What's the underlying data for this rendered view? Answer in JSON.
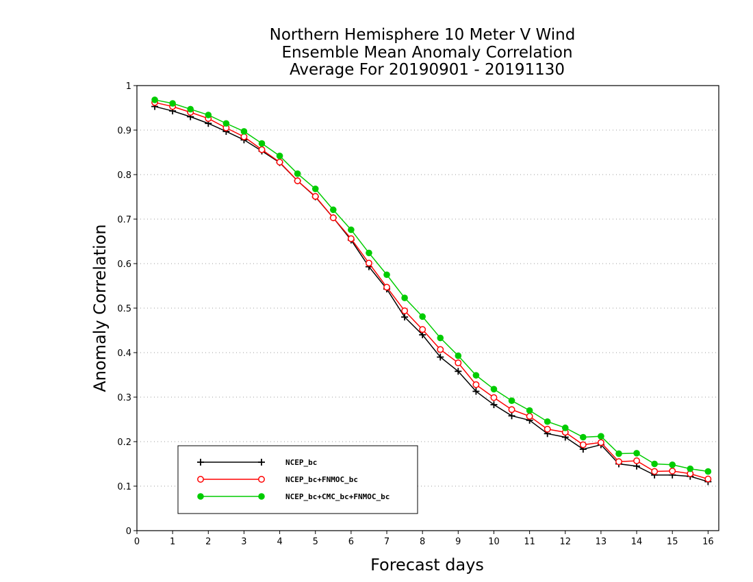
{
  "chart_data": {
    "type": "line",
    "title_lines": [
      "Northern Hemisphere 10 Meter V Wind",
      "Ensemble Mean Anomaly Correlation",
      "Average For 20190901 - 20191130"
    ],
    "xlabel": "Forecast days",
    "ylabel": "Anomaly Correlation",
    "xlim": [
      0,
      16.3
    ],
    "ylim": [
      0,
      1
    ],
    "xticks": [
      "0",
      "1",
      "2",
      "3",
      "4",
      "5",
      "6",
      "7",
      "8",
      "9",
      "10",
      "11",
      "12",
      "13",
      "14",
      "15",
      "16"
    ],
    "yticks": [
      "0",
      "0.1",
      "0.2",
      "0.3",
      "0.4",
      "0.5",
      "0.6",
      "0.7",
      "0.8",
      "0.9",
      "1"
    ],
    "grid": "horizontal dotted",
    "legend_position": "bottom-left",
    "x": [
      0.5,
      1,
      1.5,
      2,
      2.5,
      3,
      3.5,
      4,
      4.5,
      5,
      5.5,
      6,
      6.5,
      7,
      7.5,
      8,
      8.5,
      9,
      9.5,
      10,
      10.5,
      11,
      11.5,
      12,
      12.5,
      13,
      13.5,
      14,
      14.5,
      15,
      15.5,
      16
    ],
    "series": [
      {
        "name": "NCEP_bc",
        "color": "#000000",
        "marker": "plus",
        "values": [
          0.953,
          0.943,
          0.93,
          0.915,
          0.897,
          0.878,
          0.853,
          0.827,
          0.786,
          0.75,
          0.703,
          0.653,
          0.593,
          0.543,
          0.48,
          0.44,
          0.39,
          0.358,
          0.313,
          0.283,
          0.258,
          0.248,
          0.218,
          0.21,
          0.183,
          0.193,
          0.15,
          0.145,
          0.125,
          0.125,
          0.122,
          0.11
        ]
      },
      {
        "name": "NCEP_bc+FNMOC_bc",
        "color": "#ff0000",
        "marker": "open-circle",
        "values": [
          0.962,
          0.953,
          0.94,
          0.926,
          0.905,
          0.885,
          0.856,
          0.828,
          0.786,
          0.751,
          0.703,
          0.656,
          0.601,
          0.547,
          0.494,
          0.452,
          0.407,
          0.377,
          0.328,
          0.299,
          0.272,
          0.257,
          0.228,
          0.221,
          0.193,
          0.198,
          0.155,
          0.157,
          0.133,
          0.134,
          0.128,
          0.116
        ]
      },
      {
        "name": "NCEP_bc+CMC_bc+FNMOC_bc",
        "color": "#00cc00",
        "marker": "filled-circle",
        "values": [
          0.968,
          0.96,
          0.947,
          0.934,
          0.915,
          0.897,
          0.87,
          0.842,
          0.802,
          0.768,
          0.721,
          0.676,
          0.624,
          0.575,
          0.523,
          0.481,
          0.433,
          0.393,
          0.349,
          0.318,
          0.292,
          0.27,
          0.245,
          0.231,
          0.21,
          0.212,
          0.173,
          0.174,
          0.15,
          0.148,
          0.139,
          0.133
        ]
      }
    ]
  }
}
